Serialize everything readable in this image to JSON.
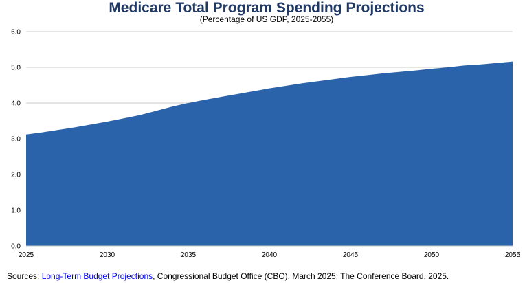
{
  "chart_data": {
    "type": "area",
    "title": "Medicare Total Program Spending Projections",
    "subtitle": "(Percentage of US GDP, 2025-2055)",
    "xlim": [
      2025,
      2055
    ],
    "ylim": [
      0,
      6
    ],
    "x_ticks": [
      "2025",
      "2030",
      "2035",
      "2040",
      "2045",
      "2050",
      "2055"
    ],
    "y_ticks": [
      "0.0",
      "1.0",
      "2.0",
      "3.0",
      "4.0",
      "5.0",
      "6.0"
    ],
    "grid": "horizontal",
    "legend": "none",
    "fill_color": "#2b63ab",
    "series": [
      {
        "x": [
          2025,
          2026,
          2027,
          2028,
          2029,
          2030,
          2031,
          2032,
          2033,
          2034,
          2035,
          2036,
          2037,
          2038,
          2039,
          2040,
          2041,
          2042,
          2043,
          2044,
          2045,
          2046,
          2047,
          2048,
          2049,
          2050,
          2051,
          2052,
          2053,
          2054,
          2055
        ],
        "values": [
          3.12,
          3.18,
          3.25,
          3.32,
          3.4,
          3.48,
          3.57,
          3.66,
          3.78,
          3.9,
          4.0,
          4.09,
          4.17,
          4.25,
          4.33,
          4.41,
          4.48,
          4.55,
          4.61,
          4.67,
          4.73,
          4.78,
          4.83,
          4.87,
          4.91,
          4.96,
          5.0,
          5.05,
          5.08,
          5.12,
          5.16
        ]
      }
    ]
  },
  "footer": {
    "prefix": "Sources: ",
    "link_text": "Long-Term Budget Projections",
    "suffix": ", Congressional Budget Office (CBO), March 2025; The Conference Board, 2025."
  }
}
